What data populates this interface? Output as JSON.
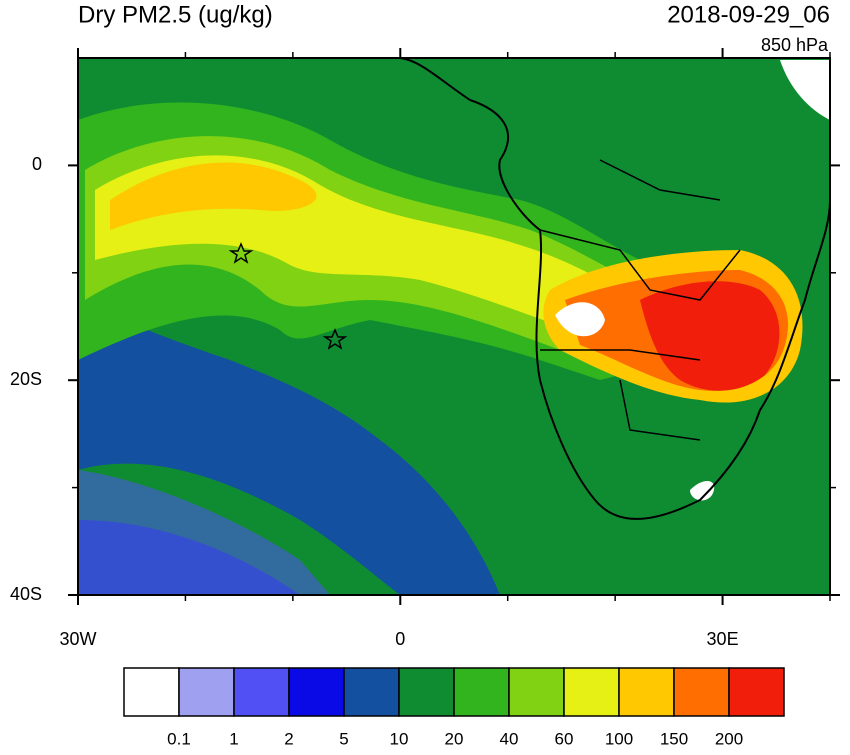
{
  "map": {
    "title": "Dry PM2.5 (ug/kg)",
    "time": "2018-09-29_06",
    "level": "850 hPa",
    "xlim": [
      -30,
      40
    ],
    "ylim": [
      -40,
      10
    ],
    "xticks": [
      {
        "value": -30,
        "label": "30W"
      },
      0,
      {
        "value": 30,
        "label": "30E"
      }
    ],
    "yticks": [
      0,
      {
        "value": -20,
        "label": "20S"
      },
      {
        "value": -40,
        "label": "40S"
      }
    ],
    "x_minor_ticks": [
      -20,
      -10,
      10,
      20,
      40
    ],
    "y_minor_ticks": [
      -10,
      -30
    ],
    "colorbar": {
      "levels": [
        0.1,
        1,
        2,
        5,
        10,
        20,
        40,
        60,
        100,
        150,
        200
      ],
      "colors": [
        "#ffffff",
        "#a0a0f0",
        "#5050f5",
        "#0a0ae6",
        "#1450a0",
        "#0f8c32",
        "#32b41e",
        "#82d214",
        "#e6f014",
        "#ffc800",
        "#ff6e00",
        "#f01e0a"
      ]
    }
  }
}
